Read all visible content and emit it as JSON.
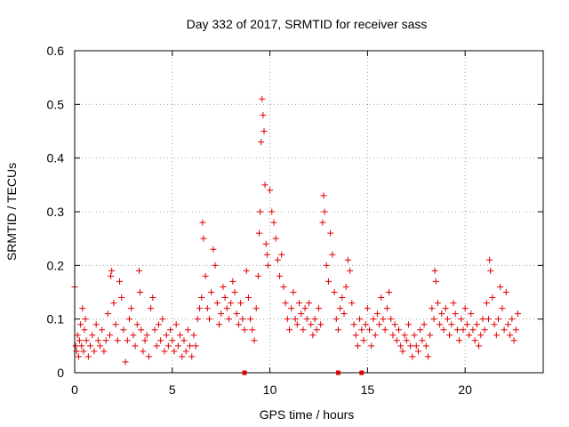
{
  "chart_data": {
    "type": "scatter",
    "title": "Day 332 of 2017, SRMTID for receiver sass",
    "xlabel": "GPS time / hours",
    "ylabel": "SRMTID / TECUs",
    "xlim": [
      0,
      24
    ],
    "ylim": [
      0,
      0.6
    ],
    "x_ticks": [
      0,
      5,
      10,
      15,
      20
    ],
    "x_tick_labels": [
      "0",
      "5",
      "10",
      "15",
      "20"
    ],
    "y_ticks": [
      0,
      0.1,
      0.2,
      0.3,
      0.4,
      0.5,
      0.6
    ],
    "y_tick_labels": [
      "0",
      "0.1",
      "0.2",
      "0.3",
      "0.4",
      "0.5",
      "0.6"
    ],
    "grid": true,
    "marker": "plus",
    "color": "#e00000",
    "x_axis_markers": [
      8.7,
      13.5,
      14.7
    ],
    "series": [
      {
        "name": "SRMTID",
        "points": [
          [
            0.0,
            0.16
          ],
          [
            0.05,
            0.05
          ],
          [
            0.1,
            0.04
          ],
          [
            0.15,
            0.07
          ],
          [
            0.2,
            0.03
          ],
          [
            0.25,
            0.06
          ],
          [
            0.3,
            0.09
          ],
          [
            0.35,
            0.05
          ],
          [
            0.4,
            0.12
          ],
          [
            0.45,
            0.04
          ],
          [
            0.5,
            0.08
          ],
          [
            0.55,
            0.1
          ],
          [
            0.6,
            0.06
          ],
          [
            0.7,
            0.03
          ],
          [
            0.8,
            0.05
          ],
          [
            0.9,
            0.07
          ],
          [
            1.0,
            0.04
          ],
          [
            1.1,
            0.09
          ],
          [
            1.2,
            0.06
          ],
          [
            1.3,
            0.05
          ],
          [
            1.4,
            0.08
          ],
          [
            1.5,
            0.04
          ],
          [
            1.6,
            0.06
          ],
          [
            1.7,
            0.11
          ],
          [
            1.8,
            0.07
          ],
          [
            1.85,
            0.18
          ],
          [
            1.9,
            0.19
          ],
          [
            2.0,
            0.13
          ],
          [
            2.1,
            0.09
          ],
          [
            2.2,
            0.06
          ],
          [
            2.3,
            0.17
          ],
          [
            2.4,
            0.14
          ],
          [
            2.5,
            0.08
          ],
          [
            2.6,
            0.02
          ],
          [
            2.7,
            0.06
          ],
          [
            2.8,
            0.1
          ],
          [
            2.9,
            0.12
          ],
          [
            3.0,
            0.07
          ],
          [
            3.1,
            0.05
          ],
          [
            3.2,
            0.09
          ],
          [
            3.3,
            0.19
          ],
          [
            3.35,
            0.15
          ],
          [
            3.4,
            0.08
          ],
          [
            3.5,
            0.04
          ],
          [
            3.6,
            0.06
          ],
          [
            3.7,
            0.07
          ],
          [
            3.8,
            0.03
          ],
          [
            3.9,
            0.12
          ],
          [
            4.0,
            0.14
          ],
          [
            4.1,
            0.08
          ],
          [
            4.2,
            0.05
          ],
          [
            4.3,
            0.09
          ],
          [
            4.4,
            0.06
          ],
          [
            4.5,
            0.1
          ],
          [
            4.6,
            0.04
          ],
          [
            4.7,
            0.07
          ],
          [
            4.8,
            0.05
          ],
          [
            4.9,
            0.08
          ],
          [
            5.0,
            0.06
          ],
          [
            5.1,
            0.04
          ],
          [
            5.2,
            0.09
          ],
          [
            5.3,
            0.05
          ],
          [
            5.4,
            0.07
          ],
          [
            5.5,
            0.03
          ],
          [
            5.6,
            0.06
          ],
          [
            5.7,
            0.04
          ],
          [
            5.8,
            0.08
          ],
          [
            5.9,
            0.05
          ],
          [
            6.0,
            0.03
          ],
          [
            6.1,
            0.07
          ],
          [
            6.2,
            0.05
          ],
          [
            6.3,
            0.1
          ],
          [
            6.4,
            0.12
          ],
          [
            6.5,
            0.14
          ],
          [
            6.55,
            0.28
          ],
          [
            6.6,
            0.25
          ],
          [
            6.7,
            0.18
          ],
          [
            6.8,
            0.12
          ],
          [
            6.9,
            0.1
          ],
          [
            7.0,
            0.15
          ],
          [
            7.1,
            0.23
          ],
          [
            7.2,
            0.2
          ],
          [
            7.3,
            0.13
          ],
          [
            7.4,
            0.09
          ],
          [
            7.5,
            0.11
          ],
          [
            7.6,
            0.16
          ],
          [
            7.7,
            0.14
          ],
          [
            7.8,
            0.12
          ],
          [
            7.9,
            0.1
          ],
          [
            8.0,
            0.13
          ],
          [
            8.1,
            0.17
          ],
          [
            8.2,
            0.15
          ],
          [
            8.3,
            0.11
          ],
          [
            8.4,
            0.09
          ],
          [
            8.5,
            0.13
          ],
          [
            8.6,
            0.1
          ],
          [
            8.7,
            0.08
          ],
          [
            8.8,
            0.19
          ],
          [
            8.9,
            0.14
          ],
          [
            9.0,
            0.1
          ],
          [
            9.1,
            0.08
          ],
          [
            9.2,
            0.06
          ],
          [
            9.3,
            0.12
          ],
          [
            9.4,
            0.18
          ],
          [
            9.45,
            0.26
          ],
          [
            9.5,
            0.3
          ],
          [
            9.55,
            0.43
          ],
          [
            9.6,
            0.51
          ],
          [
            9.65,
            0.48
          ],
          [
            9.7,
            0.45
          ],
          [
            9.75,
            0.35
          ],
          [
            9.8,
            0.24
          ],
          [
            9.85,
            0.22
          ],
          [
            9.9,
            0.2
          ],
          [
            10.0,
            0.34
          ],
          [
            10.1,
            0.3
          ],
          [
            10.2,
            0.28
          ],
          [
            10.3,
            0.25
          ],
          [
            10.4,
            0.21
          ],
          [
            10.5,
            0.18
          ],
          [
            10.6,
            0.22
          ],
          [
            10.7,
            0.16
          ],
          [
            10.8,
            0.13
          ],
          [
            10.9,
            0.1
          ],
          [
            11.0,
            0.08
          ],
          [
            11.1,
            0.12
          ],
          [
            11.2,
            0.15
          ],
          [
            11.3,
            0.1
          ],
          [
            11.4,
            0.09
          ],
          [
            11.5,
            0.13
          ],
          [
            11.6,
            0.11
          ],
          [
            11.7,
            0.08
          ],
          [
            11.8,
            0.12
          ],
          [
            11.9,
            0.1
          ],
          [
            12.0,
            0.13
          ],
          [
            12.1,
            0.09
          ],
          [
            12.2,
            0.07
          ],
          [
            12.3,
            0.1
          ],
          [
            12.4,
            0.08
          ],
          [
            12.5,
            0.12
          ],
          [
            12.6,
            0.09
          ],
          [
            12.7,
            0.28
          ],
          [
            12.75,
            0.33
          ],
          [
            12.8,
            0.3
          ],
          [
            12.9,
            0.2
          ],
          [
            13.0,
            0.17
          ],
          [
            13.1,
            0.26
          ],
          [
            13.2,
            0.22
          ],
          [
            13.3,
            0.15
          ],
          [
            13.4,
            0.1
          ],
          [
            13.5,
            0.08
          ],
          [
            13.6,
            0.12
          ],
          [
            13.7,
            0.14
          ],
          [
            13.8,
            0.11
          ],
          [
            13.9,
            0.16
          ],
          [
            14.0,
            0.21
          ],
          [
            14.1,
            0.19
          ],
          [
            14.2,
            0.13
          ],
          [
            14.3,
            0.09
          ],
          [
            14.4,
            0.07
          ],
          [
            14.5,
            0.05
          ],
          [
            14.6,
            0.1
          ],
          [
            14.7,
            0.08
          ],
          [
            14.8,
            0.06
          ],
          [
            14.9,
            0.09
          ],
          [
            15.0,
            0.12
          ],
          [
            15.1,
            0.08
          ],
          [
            15.2,
            0.05
          ],
          [
            15.3,
            0.1
          ],
          [
            15.4,
            0.07
          ],
          [
            15.5,
            0.11
          ],
          [
            15.6,
            0.09
          ],
          [
            15.7,
            0.14
          ],
          [
            15.8,
            0.1
          ],
          [
            15.9,
            0.08
          ],
          [
            16.0,
            0.12
          ],
          [
            16.1,
            0.15
          ],
          [
            16.2,
            0.1
          ],
          [
            16.3,
            0.07
          ],
          [
            16.4,
            0.09
          ],
          [
            16.5,
            0.06
          ],
          [
            16.6,
            0.08
          ],
          [
            16.7,
            0.05
          ],
          [
            16.8,
            0.04
          ],
          [
            16.9,
            0.07
          ],
          [
            17.0,
            0.06
          ],
          [
            17.1,
            0.09
          ],
          [
            17.2,
            0.05
          ],
          [
            17.3,
            0.03
          ],
          [
            17.4,
            0.07
          ],
          [
            17.5,
            0.05
          ],
          [
            17.6,
            0.04
          ],
          [
            17.7,
            0.08
          ],
          [
            17.8,
            0.06
          ],
          [
            17.9,
            0.09
          ],
          [
            18.0,
            0.05
          ],
          [
            18.1,
            0.03
          ],
          [
            18.2,
            0.07
          ],
          [
            18.3,
            0.12
          ],
          [
            18.4,
            0.1
          ],
          [
            18.45,
            0.19
          ],
          [
            18.5,
            0.17
          ],
          [
            18.6,
            0.13
          ],
          [
            18.7,
            0.09
          ],
          [
            18.8,
            0.11
          ],
          [
            18.9,
            0.08
          ],
          [
            19.0,
            0.12
          ],
          [
            19.1,
            0.1
          ],
          [
            19.2,
            0.07
          ],
          [
            19.3,
            0.09
          ],
          [
            19.4,
            0.13
          ],
          [
            19.5,
            0.11
          ],
          [
            19.6,
            0.08
          ],
          [
            19.7,
            0.06
          ],
          [
            19.8,
            0.1
          ],
          [
            19.9,
            0.08
          ],
          [
            20.0,
            0.12
          ],
          [
            20.1,
            0.09
          ],
          [
            20.2,
            0.07
          ],
          [
            20.3,
            0.11
          ],
          [
            20.4,
            0.08
          ],
          [
            20.5,
            0.06
          ],
          [
            20.6,
            0.09
          ],
          [
            20.7,
            0.05
          ],
          [
            20.8,
            0.07
          ],
          [
            20.9,
            0.1
          ],
          [
            21.0,
            0.08
          ],
          [
            21.1,
            0.13
          ],
          [
            21.2,
            0.1
          ],
          [
            21.25,
            0.21
          ],
          [
            21.3,
            0.19
          ],
          [
            21.4,
            0.14
          ],
          [
            21.5,
            0.09
          ],
          [
            21.6,
            0.07
          ],
          [
            21.7,
            0.1
          ],
          [
            21.8,
            0.16
          ],
          [
            21.9,
            0.12
          ],
          [
            22.0,
            0.08
          ],
          [
            22.1,
            0.15
          ],
          [
            22.2,
            0.09
          ],
          [
            22.3,
            0.07
          ],
          [
            22.4,
            0.1
          ],
          [
            22.5,
            0.06
          ],
          [
            22.6,
            0.08
          ],
          [
            22.7,
            0.11
          ]
        ]
      }
    ]
  }
}
